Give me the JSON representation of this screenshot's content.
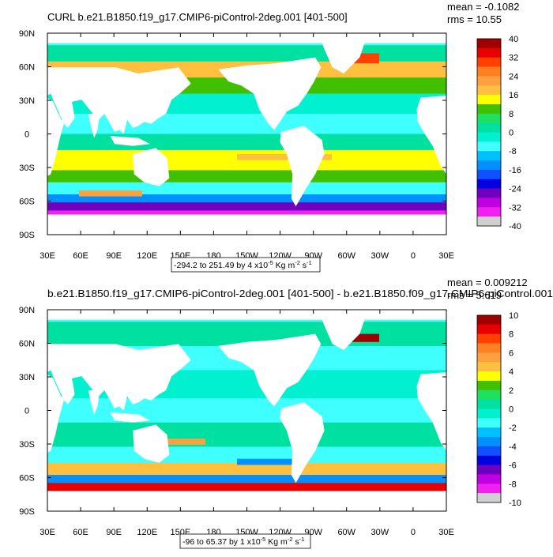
{
  "chart_data": [
    {
      "type": "heatmap",
      "title": "CURL b.e21.B1850.f19_g17.CMIP6-piControl-2deg.001 [401-500]",
      "stats": {
        "mean": "mean = -0.1082",
        "rms": "rms = 10.55"
      },
      "x_ticks": [
        "30E",
        "60E",
        "90E",
        "120E",
        "150E",
        "180",
        "150W",
        "120W",
        "90W",
        "60W",
        "30W",
        "0",
        "30E"
      ],
      "y_ticks": [
        "90N",
        "60N",
        "30N",
        "0",
        "30S",
        "60S",
        "90S"
      ],
      "range_label": {
        "prefix": "-294.2 to 251.49 by 4 x10",
        "exp": "-5",
        "units": " Kg m",
        "u1": "-2",
        "s": " s",
        "u2": "-1"
      },
      "colorbar": {
        "labels": [
          "40",
          "32",
          "24",
          "16",
          "8",
          "0",
          "-8",
          "-16",
          "-24",
          "-32",
          "-40"
        ],
        "colors": [
          "#a00000",
          "#e80000",
          "#ff4000",
          "#ff8020",
          "#ffa040",
          "#ffc040",
          "#ffff00",
          "#40c000",
          "#20e060",
          "#00e0a0",
          "#00f0d0",
          "#40ffff",
          "#00c0ff",
          "#0090ff",
          "#1050ff",
          "#0000e0",
          "#7000c0",
          "#c000e0",
          "#f020f0",
          "#d0d0d0",
          "#707070"
        ]
      }
    },
    {
      "type": "heatmap",
      "title": "b.e21.B1850.f19_g17.CMIP6-piControl-2deg.001 [401-500] - b.e21.B1850.f09_g17.CMIP6-piControl.001",
      "stats": {
        "mean": "mean = 0.009212",
        "rms": "rms = 5.619"
      },
      "x_ticks": [
        "30E",
        "60E",
        "90E",
        "120E",
        "150E",
        "180",
        "150W",
        "120W",
        "90W",
        "60W",
        "30W",
        "0",
        "30E"
      ],
      "y_ticks": [
        "90N",
        "60N",
        "30N",
        "0",
        "30S",
        "60S",
        "90S"
      ],
      "range_label": {
        "prefix": "-96 to 65.37 by 1 x10",
        "exp": "-5",
        "units": " Kg m",
        "u1": "-2",
        "s": " s",
        "u2": "-1"
      },
      "colorbar": {
        "labels": [
          "10",
          "8",
          "6",
          "4",
          "2",
          "0",
          "-2",
          "-4",
          "-6",
          "-8",
          "-10"
        ],
        "colors": [
          "#a00000",
          "#e80000",
          "#ff4000",
          "#ff8020",
          "#ffa040",
          "#ffc040",
          "#ffff00",
          "#40c000",
          "#20e060",
          "#00e0a0",
          "#00f0d0",
          "#40ffff",
          "#00c0ff",
          "#0090ff",
          "#1050ff",
          "#0000e0",
          "#7000c0",
          "#c000e0",
          "#f020f0",
          "#d0d0d0",
          "#707070"
        ]
      }
    }
  ]
}
